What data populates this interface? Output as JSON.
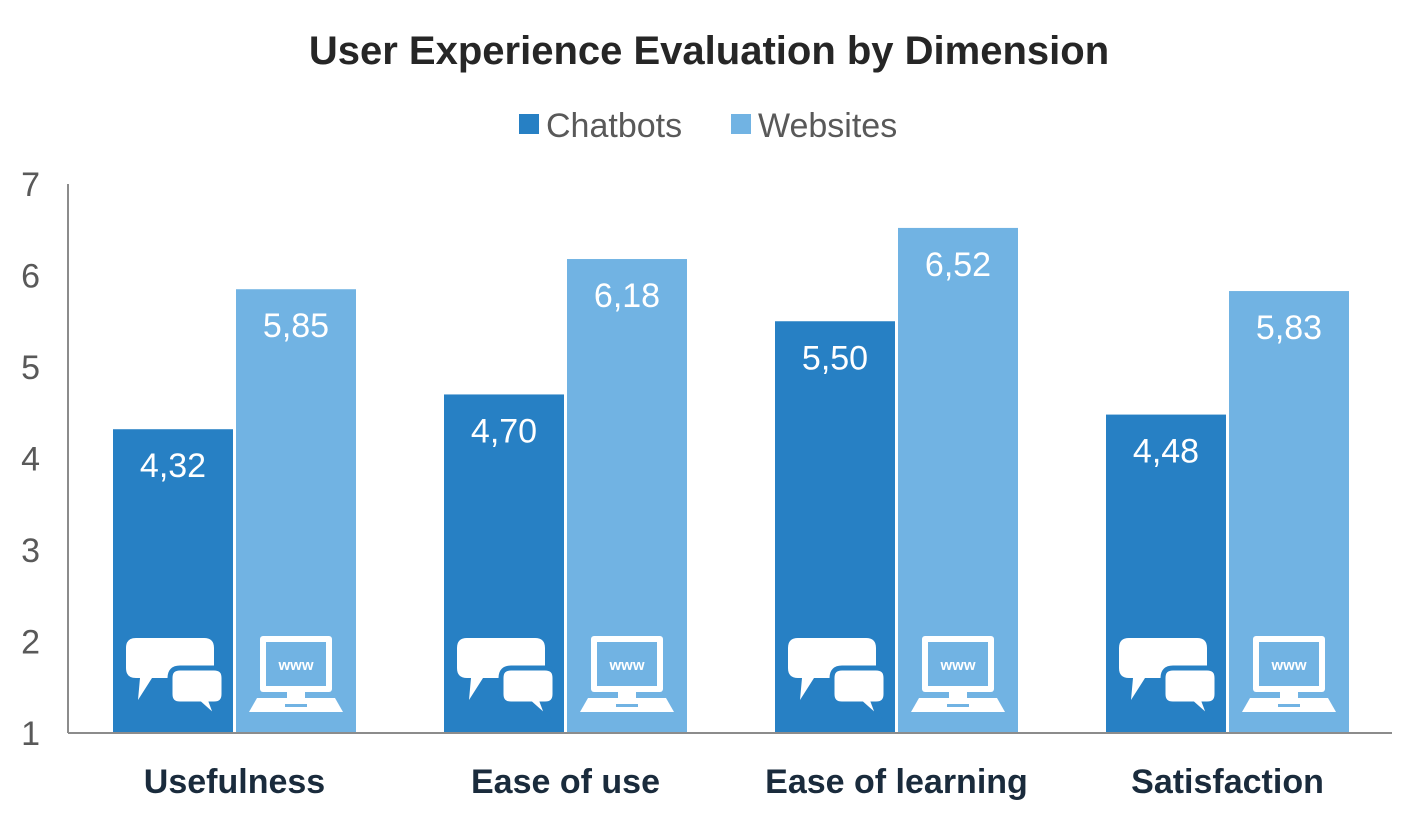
{
  "chart_data": {
    "type": "bar",
    "title": "User Experience Evaluation by Dimension",
    "categories": [
      "Usefulness",
      "Ease of use",
      "Ease of learning",
      "Satisfaction"
    ],
    "series": [
      {
        "name": "Chatbots",
        "color": "#2780c4",
        "icon": "chat-bubbles-icon",
        "values": [
          4.32,
          4.7,
          5.5,
          4.48
        ],
        "labels": [
          "4,32",
          "4,70",
          "5,50",
          "4,48"
        ]
      },
      {
        "name": "Websites",
        "color": "#71b3e3",
        "icon": "computer-www-icon",
        "values": [
          5.85,
          6.18,
          6.52,
          5.83
        ],
        "labels": [
          "5,85",
          "6,18",
          "6,52",
          "5,83"
        ]
      }
    ],
    "ylim": [
      1,
      7
    ],
    "yticks": [
      "1",
      "2",
      "3",
      "4",
      "5",
      "6",
      "7"
    ],
    "icon_text": "www",
    "grid": false,
    "legend": "top-center"
  }
}
